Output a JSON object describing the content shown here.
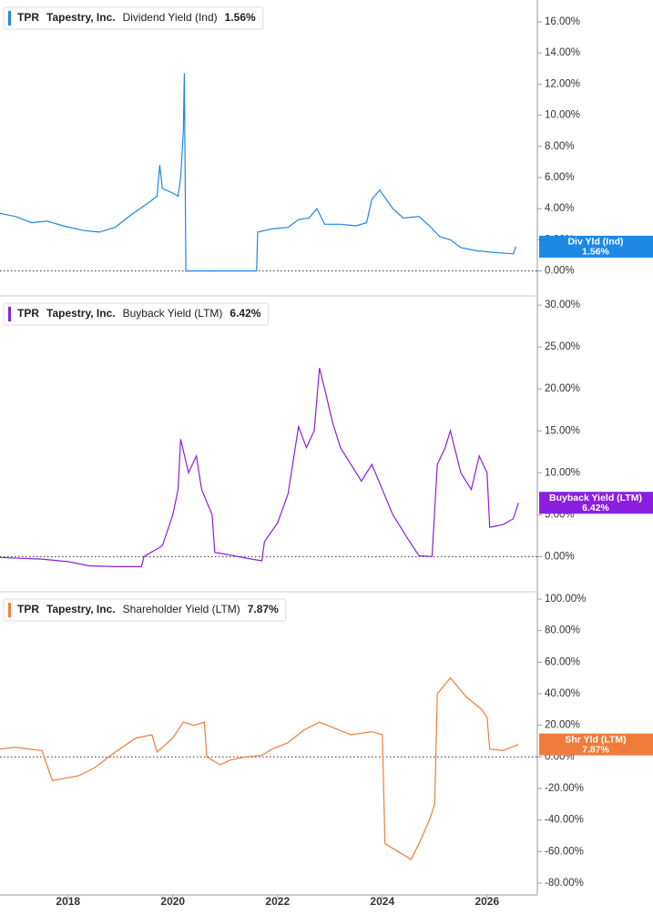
{
  "chart_data": [
    {
      "type": "line",
      "ticker": "TPR",
      "company": "Tapestry, Inc.",
      "series": [
        {
          "name": "Dividend Yield (Ind)",
          "color": "#1e88e5",
          "values": [
            3.7,
            3.5,
            3.1,
            3.2,
            2.9,
            2.6,
            2.5,
            2.8,
            3.6,
            4.3,
            4.8,
            6.8,
            5.3,
            5.0,
            4.8,
            6.0,
            9.0,
            12.7,
            0,
            0,
            2.5,
            2.7,
            2.8,
            3.3,
            3.4,
            4.0,
            3.0,
            3.0,
            2.9,
            3.1,
            4.6,
            5.2,
            4.0,
            3.4,
            3.5,
            2.9,
            2.2,
            2.0,
            1.5,
            1.3,
            1.2,
            1.1,
            1.56
          ]
        }
      ],
      "x": [
        2016.7,
        2017.0,
        2017.3,
        2017.6,
        2017.9,
        2018.3,
        2018.6,
        2018.9,
        2019.2,
        2019.5,
        2019.7,
        2019.75,
        2019.8,
        2020.0,
        2020.1,
        2020.15,
        2020.2,
        2020.22,
        2020.25,
        2021.6,
        2021.62,
        2021.9,
        2022.2,
        2022.4,
        2022.6,
        2022.75,
        2022.9,
        2023.2,
        2023.5,
        2023.7,
        2023.8,
        2023.95,
        2024.2,
        2024.4,
        2024.7,
        2024.9,
        2025.1,
        2025.3,
        2025.5,
        2025.8,
        2026.1,
        2026.5,
        2026.55
      ],
      "current": {
        "value": 1.56,
        "label": "1.56%"
      },
      "badge_label": "Div Yld (Ind)",
      "xlim": [
        2016.7,
        2026.96
      ],
      "ylim": [
        -1.6,
        17.4
      ],
      "yticks": [
        {
          "value": 0,
          "label": "0.00%"
        },
        {
          "value": 2,
          "label": "2.00%"
        },
        {
          "value": 4,
          "label": "4.00%"
        },
        {
          "value": 6,
          "label": "6.00%"
        },
        {
          "value": 8,
          "label": "8.00%"
        },
        {
          "value": 10,
          "label": "10.00%"
        },
        {
          "value": 12,
          "label": "12.00%"
        },
        {
          "value": 14,
          "label": "14.00%"
        },
        {
          "value": 16,
          "label": "16.00%"
        }
      ],
      "zero_line": true
    },
    {
      "type": "line",
      "ticker": "TPR",
      "company": "Tapestry, Inc.",
      "series": [
        {
          "name": "Buyback Yield (LTM)",
          "color": "#8a1fe0",
          "values": [
            -0.1,
            -0.3,
            -0.6,
            -1.1,
            -1.2,
            -1.2,
            0.0,
            1.3,
            5.0,
            8.0,
            14.0,
            10.0,
            12.0,
            8.0,
            5.0,
            0.5,
            0.3,
            -0.3,
            -0.5,
            1.8,
            4.0,
            7.5,
            15.5,
            13.0,
            15.0,
            22.5,
            20.0,
            16.0,
            13.0,
            11.0,
            9.0,
            11.0,
            8.0,
            5.0,
            3.0,
            2.0,
            0.1,
            0.0,
            11.0,
            13.0,
            15.0,
            10.0,
            8.0,
            12.0,
            10.0,
            3.5,
            3.8,
            4.5,
            6.42
          ]
        }
      ],
      "x": [
        2016.7,
        2017.5,
        2018.0,
        2018.4,
        2018.9,
        2019.4,
        2019.45,
        2019.8,
        2020.0,
        2020.1,
        2020.15,
        2020.3,
        2020.45,
        2020.55,
        2020.75,
        2020.8,
        2021.0,
        2021.5,
        2021.7,
        2021.75,
        2022.0,
        2022.2,
        2022.4,
        2022.55,
        2022.7,
        2022.8,
        2022.9,
        2023.05,
        2023.2,
        2023.4,
        2023.6,
        2023.8,
        2024.0,
        2024.2,
        2024.4,
        2024.5,
        2024.7,
        2024.95,
        2025.05,
        2025.2,
        2025.3,
        2025.5,
        2025.7,
        2025.85,
        2026.0,
        2026.05,
        2026.3,
        2026.5,
        2026.6
      ],
      "current": {
        "value": 6.42,
        "label": "6.42%"
      },
      "badge_label": "Buyback Yield (LTM)",
      "xlim": [
        2016.7,
        2026.96
      ],
      "ylim": [
        -4.2,
        31.1
      ],
      "yticks": [
        {
          "value": 0,
          "label": "0.00%"
        },
        {
          "value": 5,
          "label": "5.00%"
        },
        {
          "value": 10,
          "label": "10.00%"
        },
        {
          "value": 15,
          "label": "15.00%"
        },
        {
          "value": 20,
          "label": "20.00%"
        },
        {
          "value": 25,
          "label": "25.00%"
        },
        {
          "value": 30,
          "label": "30.00%"
        }
      ],
      "zero_line": true
    },
    {
      "type": "line",
      "ticker": "TPR",
      "company": "Tapestry, Inc.",
      "series": [
        {
          "name": "Shareholder Yield (LTM)",
          "color": "#f07c3c",
          "values": [
            5,
            6,
            4,
            -15,
            -12,
            -7,
            3,
            12,
            14,
            3,
            12,
            22,
            20,
            22,
            0,
            -5,
            -2,
            0,
            1,
            5,
            9,
            17,
            22,
            18,
            14,
            16,
            14,
            -55,
            -60,
            -65,
            -55,
            -40,
            -30,
            40,
            50,
            38,
            30,
            25,
            5,
            4,
            7.87
          ]
        }
      ],
      "x": [
        2016.7,
        2017.0,
        2017.5,
        2017.7,
        2018.2,
        2018.5,
        2018.9,
        2019.3,
        2019.6,
        2019.7,
        2020.0,
        2020.2,
        2020.4,
        2020.6,
        2020.65,
        2020.9,
        2021.1,
        2021.4,
        2021.7,
        2021.9,
        2022.2,
        2022.5,
        2022.8,
        2023.1,
        2023.4,
        2023.8,
        2024.0,
        2024.05,
        2024.3,
        2024.55,
        2024.7,
        2024.9,
        2025.0,
        2025.05,
        2025.3,
        2025.6,
        2025.9,
        2026.0,
        2026.05,
        2026.3,
        2026.6
      ],
      "current": {
        "value": 7.87,
        "label": "7.87%"
      },
      "badge_label": "Shr Yld (LTM)",
      "xlim": [
        2016.7,
        2026.96
      ],
      "ylim": [
        -87.5,
        104.6
      ],
      "yticks": [
        {
          "value": -80,
          "label": "-80.00%"
        },
        {
          "value": -60,
          "label": "-60.00%"
        },
        {
          "value": -40,
          "label": "-40.00%"
        },
        {
          "value": -20,
          "label": "-20.00%"
        },
        {
          "value": 0,
          "label": "0.00%"
        },
        {
          "value": 20,
          "label": "20.00%"
        },
        {
          "value": 40,
          "label": "40.00%"
        },
        {
          "value": 60,
          "label": "60.00%"
        },
        {
          "value": 80,
          "label": "80.00%"
        },
        {
          "value": 100,
          "label": "100.00%"
        }
      ],
      "xticks": [
        2018,
        2020,
        2022,
        2024,
        2026
      ],
      "zero_line": true
    }
  ]
}
